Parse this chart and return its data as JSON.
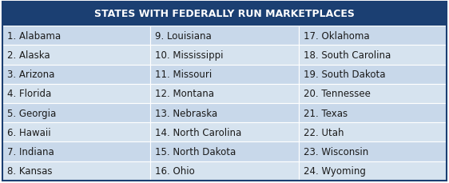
{
  "title": "STATES WITH FEDERALLY RUN MARKETPLACES",
  "title_bg_color": "#1B3F72",
  "title_text_color": "#FFFFFF",
  "header_fontsize": 9.0,
  "cell_fontsize": 8.5,
  "row_colors": [
    "#C8D8EA",
    "#D6E3EF"
  ],
  "border_color": "#FFFFFF",
  "text_color": "#1a1a1a",
  "outer_border_color": "#1B3F72",
  "columns": [
    [
      "1. Alabama",
      "2. Alaska",
      "3. Arizona",
      "4. Florida",
      "5. Georgia",
      "6. Hawaii",
      "7. Indiana",
      "8. Kansas"
    ],
    [
      "9. Louisiana",
      "10. Mississippi",
      "11. Missouri",
      "12. Montana",
      "13. Nebraska",
      "14. North Carolina",
      "15. North Dakota",
      "16. Ohio"
    ],
    [
      "17. Oklahoma",
      "18. South Carolina",
      "19. South Dakota",
      "20. Tennessee",
      "21. Texas",
      "22. Utah",
      "23. Wisconsin",
      "24. Wyoming"
    ]
  ],
  "num_rows": 8,
  "num_cols": 3,
  "fig_width": 5.62,
  "fig_height": 2.3,
  "dpi": 100
}
